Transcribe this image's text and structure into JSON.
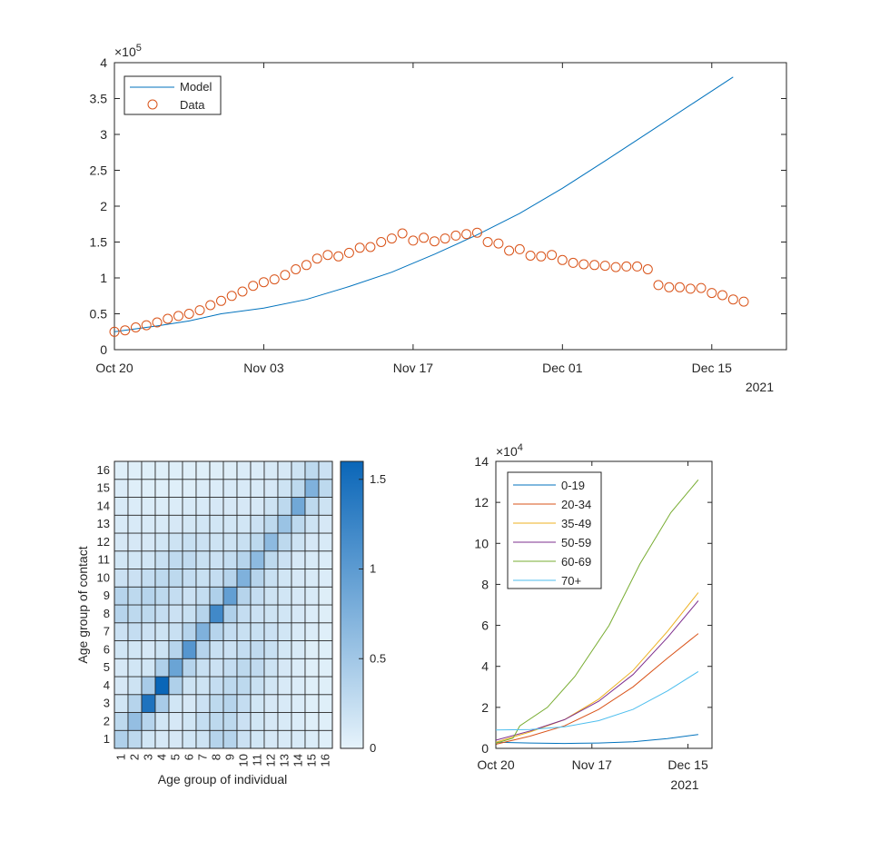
{
  "chart_data": [
    {
      "type": "line",
      "x_start": "2021-10-20",
      "x_ticks": [
        "Oct 20",
        "Nov 03",
        "Nov 17",
        "Dec 01",
        "Dec 15"
      ],
      "x_year_label": "2021",
      "ylim": [
        0,
        400000
      ],
      "y_ticks": [
        "0",
        "0.5",
        "1",
        "1.5",
        "2",
        "2.5",
        "3",
        "3.5",
        "4"
      ],
      "y_exponent": "5",
      "legend_position": "top-left",
      "series": [
        {
          "name": "Model",
          "style": "line",
          "color": "#0072BD",
          "points": [
            [
              "2021-10-20",
              25000
            ],
            [
              "2021-10-24",
              33000
            ],
            [
              "2021-10-27",
              40000
            ],
            [
              "2021-10-30",
              50000
            ],
            [
              "2021-11-03",
              58000
            ],
            [
              "2021-11-07",
              70000
            ],
            [
              "2021-11-11",
              88000
            ],
            [
              "2021-11-15",
              108000
            ],
            [
              "2021-11-19",
              133000
            ],
            [
              "2021-11-23",
              160000
            ],
            [
              "2021-11-27",
              190000
            ],
            [
              "2021-12-01",
              225000
            ],
            [
              "2021-12-05",
              263000
            ],
            [
              "2021-12-09",
              302000
            ],
            [
              "2021-12-13",
              341000
            ],
            [
              "2021-12-17",
              380000
            ]
          ]
        },
        {
          "name": "Data",
          "style": "markers",
          "color": "#D95319",
          "points": [
            [
              "2021-10-20",
              25000
            ],
            [
              "2021-10-21",
              27000
            ],
            [
              "2021-10-22",
              31000
            ],
            [
              "2021-10-23",
              34000
            ],
            [
              "2021-10-24",
              38000
            ],
            [
              "2021-10-25",
              43000
            ],
            [
              "2021-10-26",
              47000
            ],
            [
              "2021-10-27",
              50000
            ],
            [
              "2021-10-28",
              55000
            ],
            [
              "2021-10-29",
              62000
            ],
            [
              "2021-10-30",
              68000
            ],
            [
              "2021-10-31",
              75000
            ],
            [
              "2021-11-01",
              81000
            ],
            [
              "2021-11-02",
              89000
            ],
            [
              "2021-11-03",
              94000
            ],
            [
              "2021-11-04",
              98000
            ],
            [
              "2021-11-05",
              104000
            ],
            [
              "2021-11-06",
              112000
            ],
            [
              "2021-11-07",
              118000
            ],
            [
              "2021-11-08",
              127000
            ],
            [
              "2021-11-09",
              132000
            ],
            [
              "2021-11-10",
              130000
            ],
            [
              "2021-11-11",
              135000
            ],
            [
              "2021-11-12",
              142000
            ],
            [
              "2021-11-13",
              143000
            ],
            [
              "2021-11-14",
              150000
            ],
            [
              "2021-11-15",
              155000
            ],
            [
              "2021-11-16",
              162000
            ],
            [
              "2021-11-17",
              152000
            ],
            [
              "2021-11-18",
              156000
            ],
            [
              "2021-11-19",
              151000
            ],
            [
              "2021-11-20",
              155000
            ],
            [
              "2021-11-21",
              159000
            ],
            [
              "2021-11-22",
              161000
            ],
            [
              "2021-11-23",
              163000
            ],
            [
              "2021-11-24",
              150000
            ],
            [
              "2021-11-25",
              148000
            ],
            [
              "2021-11-26",
              138000
            ],
            [
              "2021-11-27",
              140000
            ],
            [
              "2021-11-28",
              131000
            ],
            [
              "2021-11-29",
              130000
            ],
            [
              "2021-11-30",
              132000
            ],
            [
              "2021-12-01",
              125000
            ],
            [
              "2021-12-02",
              121000
            ],
            [
              "2021-12-03",
              119000
            ],
            [
              "2021-12-04",
              118000
            ],
            [
              "2021-12-05",
              117000
            ],
            [
              "2021-12-06",
              115000
            ],
            [
              "2021-12-07",
              116000
            ],
            [
              "2021-12-08",
              116000
            ],
            [
              "2021-12-09",
              112000
            ],
            [
              "2021-12-10",
              90000
            ],
            [
              "2021-12-11",
              87000
            ],
            [
              "2021-12-12",
              87000
            ],
            [
              "2021-12-13",
              85000
            ],
            [
              "2021-12-14",
              86000
            ],
            [
              "2021-12-15",
              79000
            ],
            [
              "2021-12-16",
              76000
            ],
            [
              "2021-12-17",
              70000
            ],
            [
              "2021-12-18",
              67000
            ]
          ]
        }
      ]
    },
    {
      "type": "heatmap",
      "xlabel": "Age group of individual",
      "ylabel": "Age group of contact",
      "x_categories": [
        "1",
        "2",
        "3",
        "4",
        "5",
        "6",
        "7",
        "8",
        "9",
        "10",
        "11",
        "12",
        "13",
        "14",
        "15",
        "16"
      ],
      "y_categories": [
        "1",
        "2",
        "3",
        "4",
        "5",
        "6",
        "7",
        "8",
        "9",
        "10",
        "11",
        "12",
        "13",
        "14",
        "15",
        "16"
      ],
      "clim": [
        0,
        1.6
      ],
      "colorbar_ticks": [
        "0",
        "0.5",
        "1",
        "1.5"
      ],
      "colormap_low": "#E6F3FB",
      "colormap_high": "#0A66B8",
      "values": [
        [
          0.4,
          0.3,
          0.15,
          0.12,
          0.12,
          0.15,
          0.18,
          0.35,
          0.35,
          0.2,
          0.15,
          0.12,
          0.1,
          0.1,
          0.08,
          0.05
        ],
        [
          0.3,
          0.6,
          0.35,
          0.15,
          0.12,
          0.15,
          0.25,
          0.3,
          0.3,
          0.2,
          0.15,
          0.12,
          0.1,
          0.08,
          0.05,
          0.05
        ],
        [
          0.15,
          0.35,
          1.45,
          0.45,
          0.15,
          0.12,
          0.2,
          0.3,
          0.35,
          0.25,
          0.15,
          0.12,
          0.1,
          0.08,
          0.05,
          0.05
        ],
        [
          0.12,
          0.18,
          0.45,
          1.6,
          0.4,
          0.18,
          0.18,
          0.25,
          0.3,
          0.3,
          0.22,
          0.15,
          0.1,
          0.08,
          0.05,
          0.05
        ],
        [
          0.12,
          0.15,
          0.15,
          0.4,
          0.9,
          0.35,
          0.22,
          0.2,
          0.25,
          0.3,
          0.28,
          0.18,
          0.12,
          0.08,
          0.05,
          0.05
        ],
        [
          0.15,
          0.15,
          0.12,
          0.18,
          0.35,
          1.05,
          0.35,
          0.22,
          0.2,
          0.25,
          0.28,
          0.22,
          0.14,
          0.1,
          0.06,
          0.05
        ],
        [
          0.2,
          0.25,
          0.2,
          0.18,
          0.22,
          0.35,
          0.75,
          0.35,
          0.25,
          0.22,
          0.22,
          0.2,
          0.15,
          0.1,
          0.08,
          0.05
        ],
        [
          0.35,
          0.3,
          0.3,
          0.25,
          0.2,
          0.22,
          0.35,
          1.2,
          0.4,
          0.25,
          0.2,
          0.18,
          0.15,
          0.12,
          0.08,
          0.06
        ],
        [
          0.35,
          0.3,
          0.35,
          0.3,
          0.25,
          0.2,
          0.25,
          0.4,
          0.95,
          0.35,
          0.25,
          0.18,
          0.15,
          0.12,
          0.1,
          0.06
        ],
        [
          0.2,
          0.2,
          0.25,
          0.3,
          0.3,
          0.25,
          0.22,
          0.25,
          0.35,
          0.75,
          0.35,
          0.22,
          0.15,
          0.12,
          0.1,
          0.08
        ],
        [
          0.15,
          0.15,
          0.15,
          0.22,
          0.28,
          0.28,
          0.22,
          0.2,
          0.25,
          0.35,
          0.65,
          0.3,
          0.2,
          0.12,
          0.1,
          0.08
        ],
        [
          0.12,
          0.12,
          0.12,
          0.15,
          0.18,
          0.22,
          0.2,
          0.18,
          0.18,
          0.22,
          0.3,
          0.65,
          0.3,
          0.18,
          0.12,
          0.1
        ],
        [
          0.1,
          0.1,
          0.1,
          0.1,
          0.12,
          0.14,
          0.15,
          0.15,
          0.15,
          0.15,
          0.2,
          0.3,
          0.55,
          0.3,
          0.18,
          0.12
        ],
        [
          0.1,
          0.08,
          0.08,
          0.08,
          0.08,
          0.1,
          0.1,
          0.12,
          0.12,
          0.12,
          0.12,
          0.18,
          0.3,
          0.85,
          0.3,
          0.18
        ],
        [
          0.08,
          0.05,
          0.05,
          0.05,
          0.05,
          0.06,
          0.08,
          0.08,
          0.1,
          0.1,
          0.1,
          0.12,
          0.18,
          0.3,
          0.75,
          0.3
        ],
        [
          0.05,
          0.05,
          0.05,
          0.05,
          0.05,
          0.05,
          0.05,
          0.06,
          0.06,
          0.08,
          0.08,
          0.1,
          0.12,
          0.18,
          0.3,
          0.2
        ]
      ]
    },
    {
      "type": "line",
      "x_start": "2021-10-20",
      "x_ticks": [
        "Oct 20",
        "Nov 17",
        "Dec 15"
      ],
      "x_year_label": "2021",
      "ylim": [
        0,
        140000
      ],
      "y_ticks": [
        "0",
        "2",
        "4",
        "6",
        "8",
        "10",
        "12",
        "14"
      ],
      "y_exponent": "4",
      "legend_position": "top-left",
      "series": [
        {
          "name": "0-19",
          "color": "#0072BD",
          "points": [
            [
              "2021-10-20",
              3000
            ],
            [
              "2021-10-30",
              2600
            ],
            [
              "2021-11-09",
              2400
            ],
            [
              "2021-11-19",
              2600
            ],
            [
              "2021-11-29",
              3200
            ],
            [
              "2021-12-09",
              4800
            ],
            [
              "2021-12-18",
              6800
            ]
          ]
        },
        {
          "name": "20-34",
          "color": "#D95319",
          "points": [
            [
              "2021-10-20",
              2000
            ],
            [
              "2021-10-30",
              6000
            ],
            [
              "2021-11-09",
              11000
            ],
            [
              "2021-11-19",
              19000
            ],
            [
              "2021-11-29",
              30000
            ],
            [
              "2021-12-09",
              44000
            ],
            [
              "2021-12-18",
              56000
            ]
          ]
        },
        {
          "name": "35-49",
          "color": "#EDB120",
          "points": [
            [
              "2021-10-20",
              3000
            ],
            [
              "2021-10-30",
              8000
            ],
            [
              "2021-11-09",
              14000
            ],
            [
              "2021-11-19",
              24000
            ],
            [
              "2021-11-29",
              38000
            ],
            [
              "2021-12-09",
              57000
            ],
            [
              "2021-12-18",
              76000
            ]
          ]
        },
        {
          "name": "50-59",
          "color": "#7E2F8E",
          "points": [
            [
              "2021-10-20",
              4000
            ],
            [
              "2021-10-30",
              8500
            ],
            [
              "2021-11-09",
              14000
            ],
            [
              "2021-11-19",
              23000
            ],
            [
              "2021-11-29",
              36000
            ],
            [
              "2021-12-09",
              54000
            ],
            [
              "2021-12-18",
              72000
            ]
          ]
        },
        {
          "name": "60-69",
          "color": "#77AC30",
          "points": [
            [
              "2021-10-20",
              2500
            ],
            [
              "2021-10-25",
              5000
            ],
            [
              "2021-10-27",
              11000
            ],
            [
              "2021-11-04",
              20000
            ],
            [
              "2021-11-12",
              35000
            ],
            [
              "2021-11-22",
              60000
            ],
            [
              "2021-12-01",
              90000
            ],
            [
              "2021-12-10",
              115000
            ],
            [
              "2021-12-18",
              131000
            ]
          ]
        },
        {
          "name": "70+",
          "color": "#4DBEEE",
          "points": [
            [
              "2021-10-20",
              9000
            ],
            [
              "2021-10-30",
              9200
            ],
            [
              "2021-11-09",
              10500
            ],
            [
              "2021-11-19",
              13500
            ],
            [
              "2021-11-29",
              19000
            ],
            [
              "2021-12-09",
              28000
            ],
            [
              "2021-12-18",
              37500
            ]
          ]
        }
      ]
    }
  ]
}
